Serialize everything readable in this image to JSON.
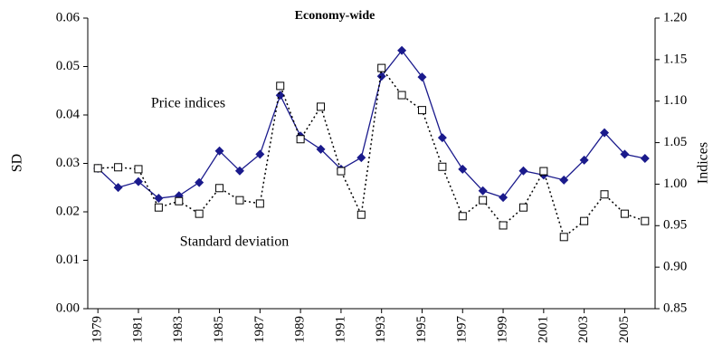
{
  "chart_data": {
    "type": "line",
    "title": "Economy-wide",
    "ylabel": "SD",
    "y2label": "Indices",
    "annotations": [
      "Price indices",
      "Standard deviation"
    ],
    "x": [
      1979,
      1980,
      1981,
      1982,
      1983,
      1984,
      1985,
      1986,
      1987,
      1988,
      1989,
      1990,
      1991,
      1992,
      1993,
      1994,
      1995,
      1996,
      1997,
      1998,
      1999,
      2000,
      2001,
      2002,
      2003,
      2004,
      2005,
      2006
    ],
    "xlim": [
      1978.5,
      2006.5
    ],
    "xticks": [
      1979,
      1981,
      1983,
      1985,
      1987,
      1989,
      1991,
      1993,
      1995,
      1997,
      1999,
      2001,
      2003,
      2005
    ],
    "ylim": [
      0,
      0.06
    ],
    "yticks": [
      {
        "value": 0,
        "label": "0.00"
      },
      {
        "value": 0.01,
        "label": "0.01"
      },
      {
        "value": 0.02,
        "label": "0.02"
      },
      {
        "value": 0.03,
        "label": "0.03"
      },
      {
        "value": 0.04,
        "label": "0.04"
      },
      {
        "value": 0.05,
        "label": "0.05"
      },
      {
        "value": 0.06,
        "label": "0.06"
      }
    ],
    "y2lim": [
      0.85,
      1.2
    ],
    "y2ticks": [
      {
        "value": 0.85,
        "label": "0.85"
      },
      {
        "value": 0.9,
        "label": "0.90"
      },
      {
        "value": 0.95,
        "label": "0.95"
      },
      {
        "value": 1,
        "label": "1.00"
      },
      {
        "value": 1.05,
        "label": "1.05"
      },
      {
        "value": 1.1,
        "label": "1.10"
      },
      {
        "value": 1.15,
        "label": "1.15"
      },
      {
        "value": 1.2,
        "label": "1.20"
      }
    ],
    "series": [
      {
        "name": "Price indices",
        "color": "#1a1a8c",
        "axis": "y2",
        "marker": "diamond",
        "dash": "solid",
        "values": [
          1.019,
          0.996,
          1.003,
          0.983,
          0.986,
          1.002,
          1.04,
          1.016,
          1.036,
          1.107,
          1.058,
          1.042,
          1.018,
          1.032,
          1.13,
          1.161,
          1.129,
          1.056,
          1.018,
          0.992,
          0.984,
          1.016,
          1.011,
          1.005,
          1.029,
          1.062,
          1.036,
          1.031
        ]
      },
      {
        "name": "Standard deviation",
        "color": "#000000",
        "axis": "y",
        "marker": "square",
        "dash": "dotted",
        "values": [
          0.029,
          0.0292,
          0.0288,
          0.0209,
          0.0222,
          0.0196,
          0.0249,
          0.0224,
          0.0217,
          0.046,
          0.035,
          0.0417,
          0.0284,
          0.0194,
          0.0497,
          0.0441,
          0.041,
          0.0293,
          0.0191,
          0.0224,
          0.0172,
          0.0209,
          0.0284,
          0.0148,
          0.0181,
          0.0236,
          0.0196,
          0.0181
        ]
      }
    ]
  }
}
